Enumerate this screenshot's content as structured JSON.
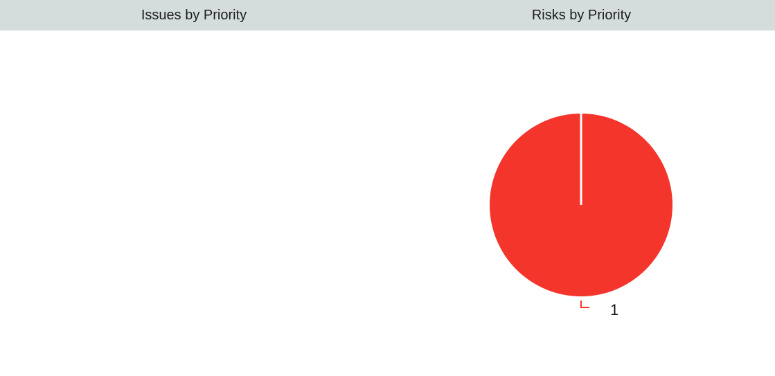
{
  "panels": {
    "issues": {
      "title": "Issues by Priority"
    },
    "risks": {
      "title": "Risks by Priority"
    }
  },
  "chart_data": [
    {
      "type": "pie",
      "title": "Issues by Priority",
      "categories": [],
      "values": []
    },
    {
      "type": "pie",
      "title": "Risks by Priority",
      "categories": [
        ""
      ],
      "values": [
        1
      ],
      "colors": [
        "#f4352b"
      ],
      "data_labels": [
        "1"
      ]
    }
  ]
}
